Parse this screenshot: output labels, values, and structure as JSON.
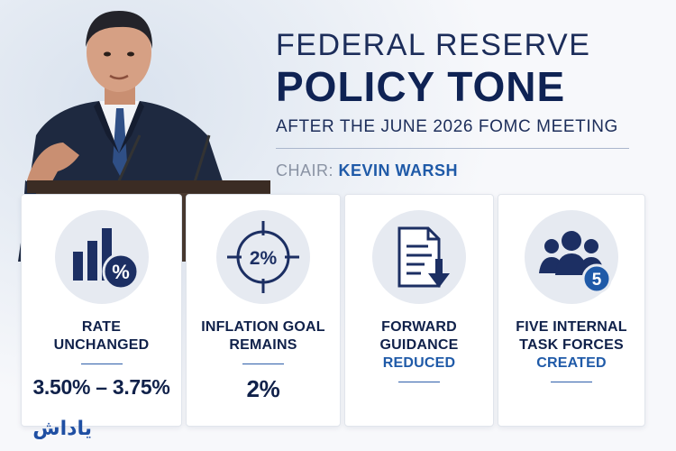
{
  "header": {
    "line1": "FEDERAL RESERVE",
    "line2": "POLICY TONE",
    "line3": "AFTER THE JUNE 2026 FOMC MEETING",
    "chair_label": "CHAIR:",
    "chair_name": "KEVIN WARSH"
  },
  "cards": [
    {
      "title": "RATE UNCHANGED",
      "value": "3.50% – 3.75%",
      "icon": "bar-chart-percent-icon",
      "badge": "%"
    },
    {
      "title": "INFLATION GOAL REMAINS",
      "value": "2%",
      "icon": "target-icon",
      "badge": "2%"
    },
    {
      "title_line1": "FORWARD GUIDANCE",
      "title_line2": "REDUCED",
      "icon": "document-down-arrow-icon"
    },
    {
      "title_line1": "FIVE INTERNAL TASK FORCES",
      "title_line2": "CREATED",
      "icon": "people-group-icon",
      "badge": "5"
    }
  ],
  "logo_text": "یاداش",
  "colors": {
    "navy": "#0f2354",
    "accent_blue": "#1f5aa8",
    "card_circle": "#e6eaf1"
  }
}
